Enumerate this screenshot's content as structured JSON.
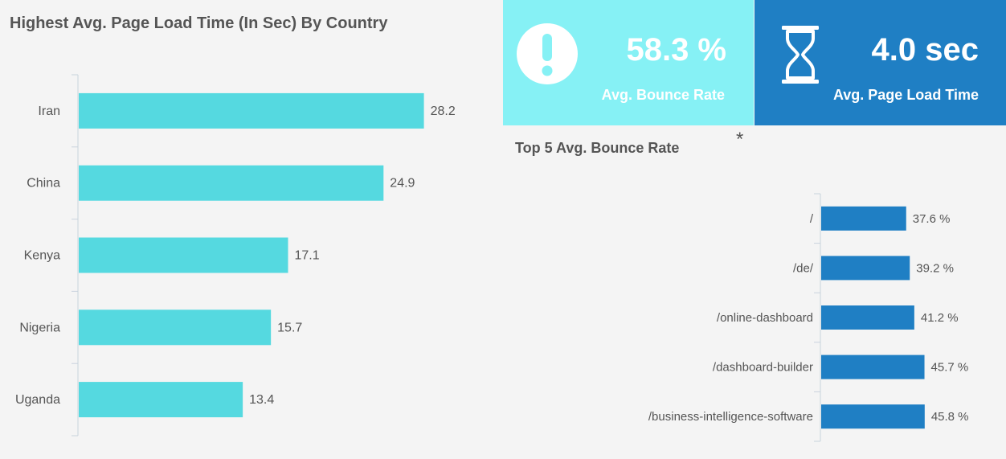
{
  "kpis": {
    "bounce": {
      "value": "58.3 %",
      "label": "Avg. Bounce Rate",
      "icon": "exclamation-circle-icon",
      "color": "#86f1f5"
    },
    "load": {
      "value": "4.0 sec",
      "label": "Avg. Page Load Time",
      "icon": "hourglass-icon",
      "color": "#1f7fc4"
    }
  },
  "menu": {
    "asterisk": "*"
  },
  "chart_data": [
    {
      "type": "bar",
      "orientation": "horizontal",
      "title": "Highest Avg. Page Load Time (In Sec) By Country",
      "categories": [
        "Iran",
        "China",
        "Kenya",
        "Nigeria",
        "Uganda"
      ],
      "values": [
        28.2,
        24.9,
        17.1,
        15.7,
        13.4
      ],
      "value_labels": [
        "28.2",
        "24.9",
        "17.1",
        "15.7",
        "13.4"
      ],
      "xlim": [
        0,
        30
      ],
      "grid": false,
      "color": "#55d9e0"
    },
    {
      "type": "bar",
      "orientation": "horizontal",
      "title": "Top 5 Avg. Bounce Rate",
      "categories": [
        "/",
        "/de/",
        "/online-dashboard",
        "/dashboard-builder",
        "/business-intelligence-software"
      ],
      "values": [
        37.6,
        39.2,
        41.2,
        45.7,
        45.8
      ],
      "value_labels": [
        "37.6 %",
        "39.2 %",
        "41.2 %",
        "45.7 %",
        "45.8 %"
      ],
      "xlim": [
        0,
        48
      ],
      "grid": false,
      "color": "#1f7fc4"
    }
  ]
}
